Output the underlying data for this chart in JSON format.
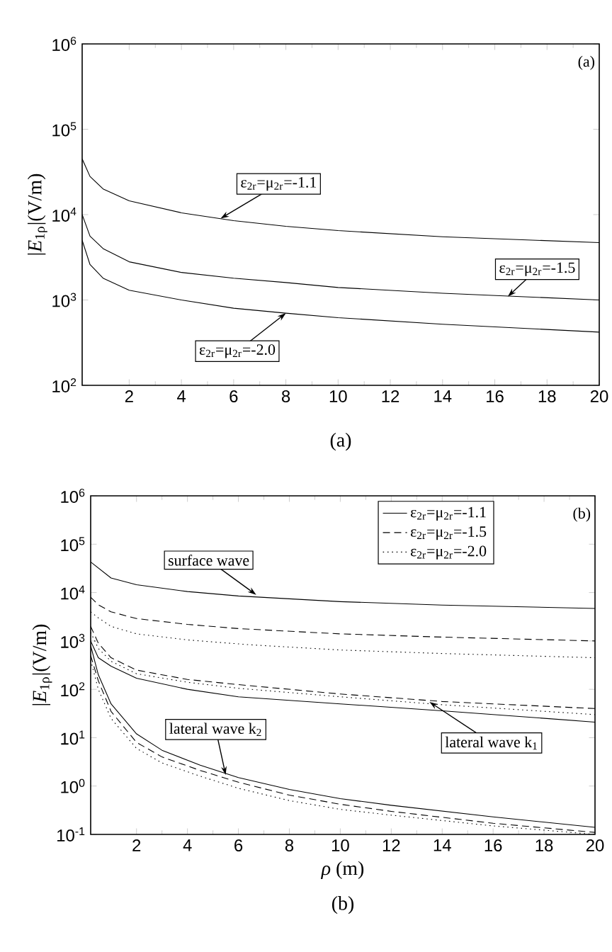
{
  "chart_data": [
    {
      "type": "line",
      "ylabel": "|*E*$_{1ρ}$|(V/m)",
      "log": "y",
      "xlim": [
        0.2,
        20
      ],
      "ylim": [
        100,
        1000000
      ],
      "xticks": [
        2,
        4,
        6,
        8,
        10,
        12,
        14,
        16,
        18,
        20
      ],
      "yticks": [
        {
          "value": 100,
          "label": "10$^{2}$"
        },
        {
          "value": 1000,
          "label": "10$^{3}$"
        },
        {
          "value": 10000,
          "label": "10$^{4}$"
        },
        {
          "value": 100000,
          "label": "10$^{5}$"
        },
        {
          "value": 1000000,
          "label": "10$^{6}$"
        }
      ],
      "series": [
        {
          "color": "#000000",
          "line_style": "solid",
          "x": [
            0.2,
            0.5,
            1,
            2,
            4,
            6,
            8,
            10,
            14,
            20
          ],
          "values": [
            45000,
            28000,
            20000,
            14500,
            10500,
            8500,
            7300,
            6500,
            5500,
            4700
          ]
        },
        {
          "color": "#000000",
          "line_style": "solid",
          "x": [
            0.2,
            0.5,
            1,
            2,
            4,
            6,
            8,
            10,
            14,
            20
          ],
          "values": [
            10000,
            5600,
            4000,
            2800,
            2100,
            1800,
            1600,
            1400,
            1200,
            1000
          ]
        },
        {
          "color": "#000000",
          "line_style": "solid",
          "x": [
            0.2,
            0.5,
            1,
            2,
            4,
            6,
            8,
            10,
            14,
            20
          ],
          "values": [
            5000,
            2600,
            1800,
            1300,
            1000,
            800,
            700,
            620,
            520,
            420
          ]
        }
      ],
      "annotations": [
        "(a)",
        "(a)",
        {
          "text": "ε$_{2r}$=μ$_{2r}$=-1.1",
          "x": 5.5,
          "y": 9000
        },
        {
          "text": "ε$_{2r}$=μ$_{2r}$=-1.5",
          "x": 16.5,
          "y": 1100
        },
        {
          "text": "ε$_{2r}$=μ$_{2r}$=-2.0",
          "x": 8,
          "y": 700
        }
      ]
    },
    {
      "type": "line",
      "xlabel": "*ρ* (m)",
      "ylabel": "|*E*$_{1ρ}$|(V/m)",
      "log": "y",
      "xlim": [
        0.2,
        20
      ],
      "ylim": [
        0.1,
        1000000
      ],
      "legend": "top right",
      "xticks": [
        2,
        4,
        6,
        8,
        10,
        12,
        14,
        16,
        18,
        20
      ],
      "yticks": [
        {
          "value": 0.1,
          "label": "10$^{-1}$"
        },
        {
          "value": 1,
          "label": "10$^{0}$"
        },
        {
          "value": 10,
          "label": "10$^{1}$"
        },
        {
          "value": 100,
          "label": "10$^{2}$"
        },
        {
          "value": 1000,
          "label": "10$^{3}$"
        },
        {
          "value": 10000,
          "label": "10$^{4}$"
        },
        {
          "value": 100000,
          "label": "10$^{5}$"
        },
        {
          "value": 1000000,
          "label": "10$^{6}$"
        }
      ],
      "series": [
        {
          "name": "ε$_{2r}$=μ$_{2r}$=-1.1",
          "color": "#000000",
          "line_style": "solid",
          "x": [
            0.2,
            1,
            2,
            4,
            6,
            10,
            14,
            20
          ],
          "values": [
            43000,
            20000,
            14500,
            10500,
            8500,
            6500,
            5500,
            4700
          ]
        },
        {
          "name": "ε$_{2r}$=μ$_{2r}$=-1.5",
          "color": "#000000",
          "line_style": "dashed",
          "x": [
            0.2,
            0.5,
            1,
            2,
            4,
            6,
            10,
            14,
            20
          ],
          "values": [
            8000,
            5600,
            4000,
            2900,
            2200,
            1800,
            1400,
            1200,
            1000
          ]
        },
        {
          "name": "ε$_{2r}$=μ$_{2r}$=-2.0",
          "color": "#000000",
          "line_style": "dotted",
          "x": [
            0.2,
            0.5,
            1,
            2,
            4,
            6.5,
            10,
            14,
            20
          ],
          "values": [
            4000,
            3000,
            2000,
            1400,
            1050,
            830,
            650,
            550,
            450
          ]
        },
        {
          "color": "#000000",
          "line_style": "solid",
          "x": [
            0.2,
            0.5,
            1,
            2,
            4,
            6,
            10,
            14,
            20
          ],
          "values": [
            1000,
            450,
            300,
            170,
            100,
            70,
            50,
            36,
            21
          ]
        },
        {
          "color": "#000000",
          "line_style": "dashed",
          "x": [
            0.2,
            0.5,
            1,
            2,
            4,
            6,
            10,
            14,
            20
          ],
          "values": [
            2000,
            900,
            450,
            250,
            160,
            125,
            80,
            56,
            40
          ]
        },
        {
          "color": "#000000",
          "line_style": "dotted",
          "x": [
            0.2,
            0.5,
            1,
            2,
            4,
            6,
            10,
            14,
            20
          ],
          "values": [
            1500,
            700,
            380,
            210,
            140,
            105,
            70,
            48,
            30
          ]
        },
        {
          "color": "#000000",
          "line_style": "solid",
          "x": [
            0.2,
            0.5,
            1,
            2,
            3,
            4.5,
            6,
            8,
            10,
            12,
            16,
            20
          ],
          "values": [
            800,
            200,
            50,
            12,
            5.5,
            2.7,
            1.5,
            0.85,
            0.55,
            0.4,
            0.23,
            0.14
          ]
        },
        {
          "color": "#000000",
          "line_style": "dashed",
          "x": [
            0.2,
            0.5,
            1,
            2,
            3,
            4.5,
            6,
            8,
            10,
            12,
            16,
            20
          ],
          "values": [
            500,
            150,
            35,
            8,
            4,
            2.1,
            1.2,
            0.65,
            0.42,
            0.3,
            0.17,
            0.11
          ]
        },
        {
          "color": "#000000",
          "line_style": "dotted",
          "x": [
            0.2,
            0.5,
            1,
            2,
            3,
            4.5,
            6,
            8,
            10,
            12,
            16,
            20
          ],
          "values": [
            400,
            100,
            25,
            6,
            3,
            1.6,
            0.9,
            0.5,
            0.33,
            0.25,
            0.15,
            0.1
          ]
        }
      ],
      "annotations": [
        "(b)",
        "(b)",
        {
          "text": "surface wave",
          "x": 6.7,
          "y": 9000
        },
        {
          "text": "lateral wave k$_{2}$",
          "x": 5.5,
          "y": 1.7
        },
        {
          "text": "lateral wave k$_{1}$",
          "x": 13.5,
          "y": 55
        }
      ]
    }
  ]
}
